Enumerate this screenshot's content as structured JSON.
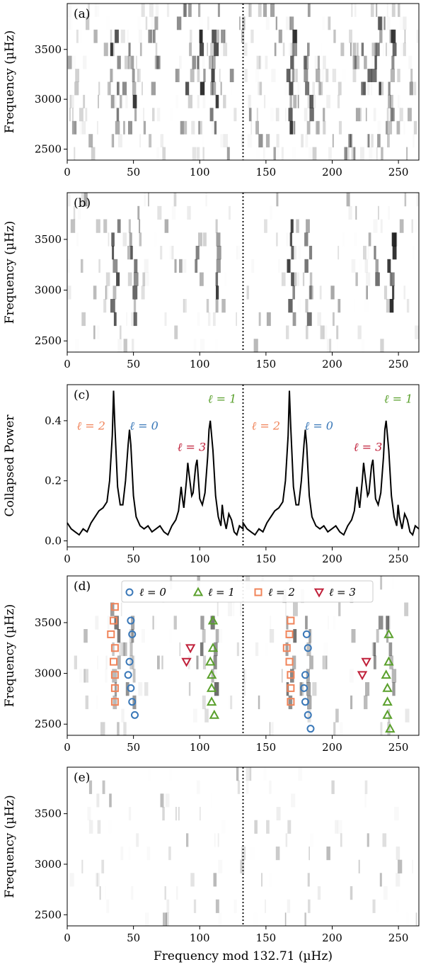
{
  "colors": {
    "l0": "#3a78b8",
    "l1": "#5aa02c",
    "l2": "#f0845a",
    "l3": "#c0203a",
    "line": "#000000"
  },
  "chart_data": [
    {
      "panel": "(a)",
      "type": "heatmap",
      "ylabel": "Frequency (µHz)",
      "xlim": [
        0,
        265.42
      ],
      "ylim": [
        2390,
        3960
      ],
      "xticks": [
        0,
        50,
        100,
        150,
        200,
        250
      ],
      "yticks": [
        2500,
        3000,
        3500
      ],
      "vline": 132.71,
      "intensity": "greyscale echelle power, strong structure",
      "ridges": [
        {
          "x": 35,
          "ymin": 2650,
          "ymax": 3650,
          "peak": 0.8
        },
        {
          "x": 48,
          "ymin": 2600,
          "ymax": 3600,
          "peak": 0.75
        },
        {
          "x": 92,
          "ymin": 3050,
          "ymax": 3600,
          "peak": 0.7
        },
        {
          "x": 100,
          "ymin": 3000,
          "ymax": 3650,
          "peak": 0.85
        },
        {
          "x": 110,
          "ymin": 2600,
          "ymax": 3650,
          "peak": 0.8
        }
      ]
    },
    {
      "panel": "(b)",
      "type": "heatmap",
      "ylabel": "Frequency (µHz)",
      "xlim": [
        0,
        265.42
      ],
      "ylim": [
        2390,
        3960
      ],
      "xticks": [
        0,
        50,
        100,
        150,
        200,
        250
      ],
      "yticks": [
        2500,
        3000,
        3500
      ],
      "vline": 132.71,
      "intensity": "greyscale echelle power, sparse peaks",
      "ridges": [
        {
          "x": 35,
          "ymin": 2700,
          "ymax": 3700,
          "peak": 0.75
        },
        {
          "x": 48,
          "ymin": 2650,
          "ymax": 3650,
          "peak": 0.6
        },
        {
          "x": 97,
          "ymin": 3100,
          "ymax": 3550,
          "peak": 0.6
        },
        {
          "x": 110,
          "ymin": 2800,
          "ymax": 3550,
          "peak": 0.85
        }
      ]
    },
    {
      "panel": "(c)",
      "type": "line",
      "ylabel": "Collapsed Power",
      "xlim": [
        0,
        265.42
      ],
      "ylim": [
        -0.02,
        0.52
      ],
      "xticks": [
        0,
        50,
        100,
        150,
        200,
        250
      ],
      "yticks": [
        0.0,
        0.2,
        0.4
      ],
      "ytick_labels": [
        "0.0",
        "0.2",
        "0.4"
      ],
      "vline": 132.71,
      "x": [
        0,
        3,
        6,
        9,
        12,
        15,
        18,
        21,
        24,
        27,
        30,
        32,
        34,
        35,
        36,
        38,
        40,
        42,
        44,
        46,
        47,
        48,
        50,
        52,
        55,
        58,
        61,
        64,
        67,
        70,
        73,
        76,
        79,
        82,
        84,
        86,
        87,
        88,
        90,
        91,
        92,
        94,
        95,
        97,
        98,
        100,
        102,
        104,
        106,
        107,
        108,
        110,
        112,
        114,
        116,
        117,
        118,
        120,
        122,
        124,
        126,
        128,
        130,
        132.71
      ],
      "y": [
        0.06,
        0.04,
        0.03,
        0.02,
        0.04,
        0.03,
        0.06,
        0.08,
        0.1,
        0.11,
        0.13,
        0.2,
        0.35,
        0.5,
        0.38,
        0.18,
        0.12,
        0.12,
        0.2,
        0.32,
        0.37,
        0.32,
        0.15,
        0.08,
        0.05,
        0.04,
        0.05,
        0.03,
        0.04,
        0.05,
        0.03,
        0.02,
        0.05,
        0.07,
        0.1,
        0.18,
        0.14,
        0.11,
        0.2,
        0.26,
        0.22,
        0.15,
        0.16,
        0.25,
        0.27,
        0.14,
        0.12,
        0.16,
        0.28,
        0.37,
        0.4,
        0.3,
        0.15,
        0.08,
        0.05,
        0.12,
        0.08,
        0.04,
        0.09,
        0.07,
        0.03,
        0.02,
        0.05,
        0.04
      ],
      "annotations": [
        {
          "text": "ℓ = 2",
          "x": 18,
          "y": 0.37,
          "series": "l2"
        },
        {
          "text": "ℓ = 0",
          "x": 58,
          "y": 0.37,
          "series": "l0"
        },
        {
          "text": "ℓ = 3",
          "x": 94,
          "y": 0.3,
          "series": "l3"
        },
        {
          "text": "ℓ = 1",
          "x": 117,
          "y": 0.46,
          "series": "l1"
        },
        {
          "text": "ℓ = 2",
          "x": 150,
          "y": 0.37,
          "series": "l2"
        },
        {
          "text": "ℓ = 0",
          "x": 190,
          "y": 0.37,
          "series": "l0"
        },
        {
          "text": "ℓ = 3",
          "x": 227,
          "y": 0.3,
          "series": "l3"
        },
        {
          "text": "ℓ = 1",
          "x": 250,
          "y": 0.46,
          "series": "l1"
        }
      ]
    },
    {
      "panel": "(d)",
      "type": "scatter",
      "ylabel": "Frequency (µHz)",
      "xlim": [
        0,
        265.42
      ],
      "ylim": [
        2390,
        3960
      ],
      "xticks": [
        0,
        50,
        100,
        150,
        200,
        250
      ],
      "yticks": [
        2500,
        3000,
        3500
      ],
      "vline": 132.71,
      "legend": {
        "location": "top",
        "entries": [
          {
            "series": "l0",
            "marker": "circle",
            "label": "ℓ = 0"
          },
          {
            "series": "l1",
            "marker": "triangle-up",
            "label": "ℓ = 1"
          },
          {
            "series": "l2",
            "marker": "square",
            "label": "ℓ = 2"
          },
          {
            "series": "l3",
            "marker": "triangle-down",
            "label": "ℓ = 3"
          }
        ]
      },
      "series": [
        {
          "key": "l0",
          "marker": "circle",
          "points": [
            [
              51,
              2590
            ],
            [
              49,
              2720
            ],
            [
              48,
              2855
            ],
            [
              46,
              2985
            ],
            [
              47,
              3115
            ],
            [
              49,
              3385
            ],
            [
              48,
              3520
            ]
          ]
        },
        {
          "key": "l1",
          "marker": "triangle-up",
          "points": [
            [
              111,
              2590
            ],
            [
              109,
              2720
            ],
            [
              109,
              2855
            ],
            [
              109,
              2985
            ],
            [
              108,
              3115
            ],
            [
              110,
              3250
            ],
            [
              110,
              3520
            ]
          ]
        },
        {
          "key": "l2",
          "marker": "square",
          "points": [
            [
              36,
              2720
            ],
            [
              36,
              2855
            ],
            [
              36,
              2985
            ],
            [
              35,
              3115
            ],
            [
              36,
              3250
            ],
            [
              33,
              3385
            ],
            [
              35,
              3520
            ],
            [
              36,
              3655
            ]
          ]
        },
        {
          "key": "l3",
          "marker": "triangle-down",
          "points": [
            [
              90,
              3115
            ],
            [
              93,
              3250
            ]
          ]
        },
        {
          "key": "l0",
          "marker": "circle",
          "points": [
            [
              183.7,
              2455
            ],
            [
              181.7,
              2590
            ],
            [
              179.7,
              2720
            ],
            [
              178.7,
              2855
            ],
            [
              179.7,
              2985
            ],
            [
              181.7,
              3250
            ],
            [
              180.7,
              3385
            ]
          ]
        },
        {
          "key": "l1",
          "marker": "triangle-up",
          "points": [
            [
              243.7,
              2455
            ],
            [
              241.7,
              2590
            ],
            [
              241.7,
              2720
            ],
            [
              241.7,
              2855
            ],
            [
              240.7,
              2985
            ],
            [
              242.7,
              3115
            ],
            [
              242.7,
              3385
            ]
          ]
        },
        {
          "key": "l2",
          "marker": "square",
          "points": [
            [
              168.7,
              2720
            ],
            [
              168.7,
              2855
            ],
            [
              168.7,
              2985
            ],
            [
              167.7,
              3115
            ],
            [
              165.7,
              3250
            ],
            [
              167.7,
              3385
            ],
            [
              168.7,
              3520
            ]
          ]
        },
        {
          "key": "l3",
          "marker": "triangle-down",
          "points": [
            [
              222.7,
              2985
            ],
            [
              225.7,
              3115
            ]
          ]
        }
      ],
      "ridges": [
        {
          "x": 35,
          "ymin": 2700,
          "ymax": 3700,
          "peak": 0.55
        },
        {
          "x": 47,
          "ymin": 2650,
          "ymax": 3600,
          "peak": 0.45
        },
        {
          "x": 100,
          "ymin": 3050,
          "ymax": 3550,
          "peak": 0.55
        },
        {
          "x": 110,
          "ymin": 2750,
          "ymax": 3550,
          "peak": 0.6
        }
      ]
    },
    {
      "panel": "(e)",
      "type": "heatmap",
      "ylabel": "Frequency (µHz)",
      "xlabel": "Frequency mod 132.71 (µHz)",
      "xlim": [
        0,
        265.42
      ],
      "ylim": [
        2390,
        3960
      ],
      "xticks": [
        0,
        50,
        100,
        150,
        200,
        250
      ],
      "yticks": [
        2500,
        3000,
        3500
      ],
      "vline": 132.71,
      "intensity": "greyscale residual power, faint",
      "ridges": []
    }
  ]
}
